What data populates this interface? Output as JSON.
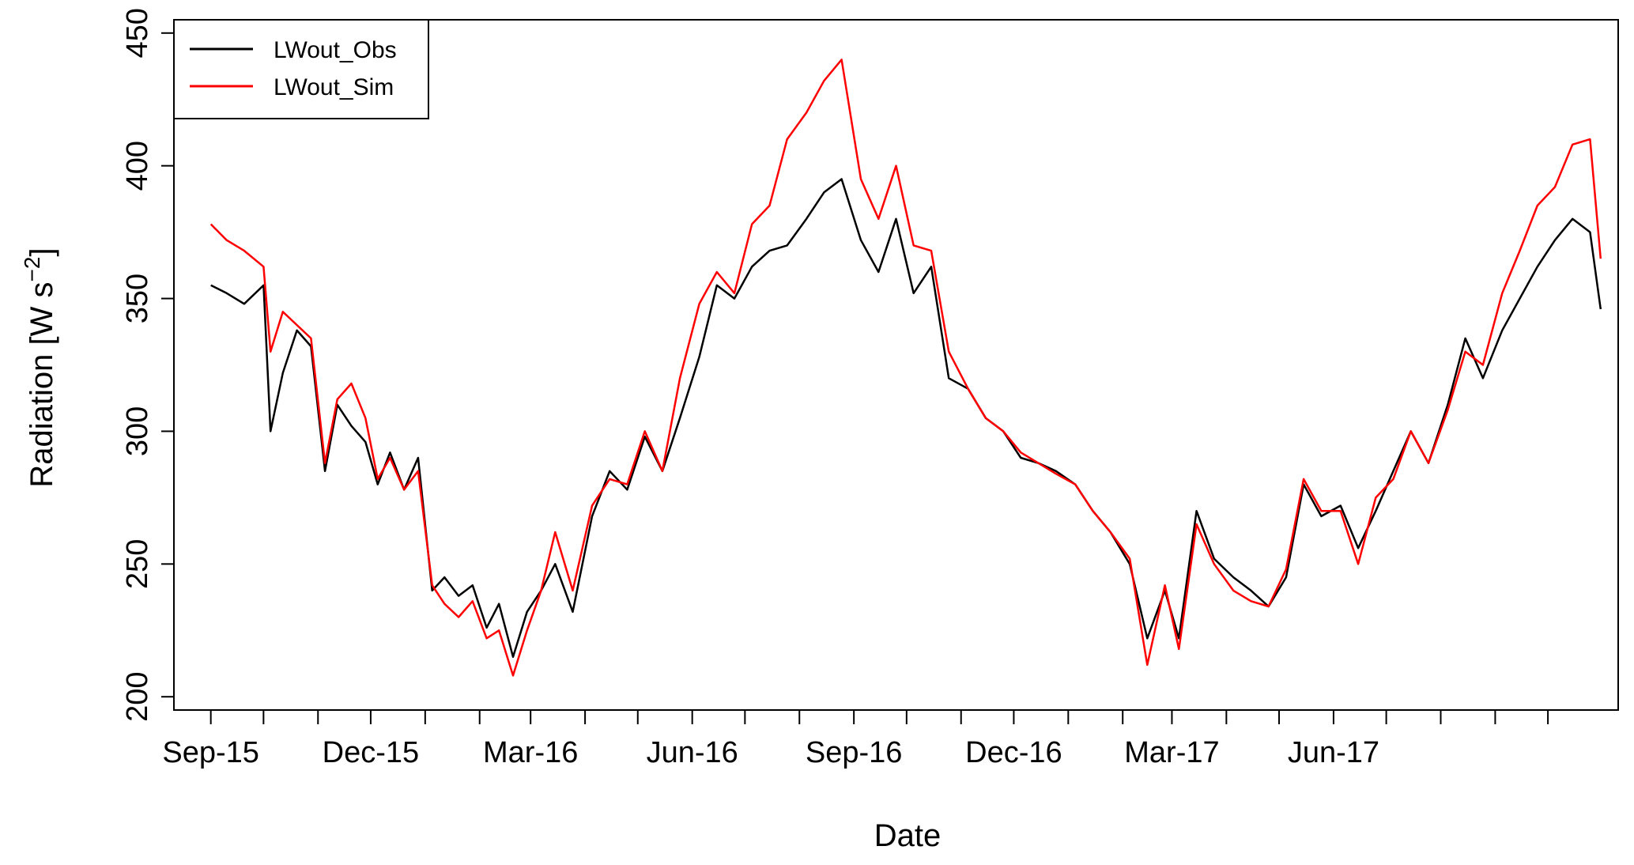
{
  "chart_data": {
    "type": "line",
    "title": "",
    "xlabel": "Date",
    "ylabel": "Radiation [W s",
    "ylabel_sup": "−2",
    "ylabel_close": "]",
    "ylim": [
      195,
      455
    ],
    "yticks": [
      200,
      250,
      300,
      350,
      400,
      450
    ],
    "xlim": [
      "2015-08-11",
      "2017-11-10"
    ],
    "x_start": "2015-09-01",
    "x_end": "2017-10-31",
    "xtick_months": [
      "2015-09",
      "2015-10",
      "2015-11",
      "2015-12",
      "2016-01",
      "2016-02",
      "2016-03",
      "2016-04",
      "2016-05",
      "2016-06",
      "2016-07",
      "2016-08",
      "2016-09",
      "2016-10",
      "2016-11",
      "2016-12",
      "2017-01",
      "2017-02",
      "2017-03",
      "2017-04",
      "2017-05",
      "2017-06",
      "2017-07",
      "2017-08",
      "2017-09",
      "2017-10"
    ],
    "xtick_labels": [
      {
        "date": "2015-09-01",
        "label": "Sep-15"
      },
      {
        "date": "2015-12-01",
        "label": "Dec-15"
      },
      {
        "date": "2016-03-01",
        "label": "Mar-16"
      },
      {
        "date": "2016-06-01",
        "label": "Jun-16"
      },
      {
        "date": "2016-09-01",
        "label": "Sep-16"
      },
      {
        "date": "2016-12-01",
        "label": "Dec-16"
      },
      {
        "date": "2017-03-01",
        "label": "Mar-17"
      },
      {
        "date": "2017-06-01",
        "label": "Jun-17"
      }
    ],
    "legend_position": "top-left",
    "series": [
      {
        "name": "LWout_Obs",
        "color": "#000000",
        "dates": [
          "2015-09-01",
          "2015-09-10",
          "2015-09-20",
          "2015-10-01",
          "2015-10-05",
          "2015-10-12",
          "2015-10-20",
          "2015-10-28",
          "2015-11-05",
          "2015-11-12",
          "2015-11-20",
          "2015-11-28",
          "2015-12-05",
          "2015-12-12",
          "2015-12-20",
          "2015-12-28",
          "2016-01-05",
          "2016-01-12",
          "2016-01-20",
          "2016-01-28",
          "2016-02-05",
          "2016-02-12",
          "2016-02-20",
          "2016-02-28",
          "2016-03-07",
          "2016-03-15",
          "2016-03-25",
          "2016-04-05",
          "2016-04-15",
          "2016-04-25",
          "2016-05-05",
          "2016-05-15",
          "2016-05-25",
          "2016-06-05",
          "2016-06-15",
          "2016-06-25",
          "2016-07-05",
          "2016-07-15",
          "2016-07-25",
          "2016-08-05",
          "2016-08-15",
          "2016-08-25",
          "2016-09-05",
          "2016-09-15",
          "2016-09-25",
          "2016-10-05",
          "2016-10-15",
          "2016-10-25",
          "2016-11-05",
          "2016-11-15",
          "2016-11-25",
          "2016-12-05",
          "2016-12-15",
          "2016-12-25",
          "2017-01-05",
          "2017-01-15",
          "2017-01-25",
          "2017-02-05",
          "2017-02-15",
          "2017-02-25",
          "2017-03-05",
          "2017-03-15",
          "2017-03-25",
          "2017-04-05",
          "2017-04-15",
          "2017-04-25",
          "2017-05-05",
          "2017-05-15",
          "2017-05-25",
          "2017-06-05",
          "2017-06-15",
          "2017-06-25",
          "2017-07-05",
          "2017-07-15",
          "2017-07-25",
          "2017-08-05",
          "2017-08-15",
          "2017-08-25",
          "2017-09-05",
          "2017-09-15",
          "2017-09-25",
          "2017-10-05",
          "2017-10-15",
          "2017-10-25",
          "2017-10-31"
        ],
        "values": [
          355,
          352,
          348,
          355,
          300,
          322,
          338,
          332,
          285,
          310,
          302,
          296,
          280,
          292,
          278,
          290,
          240,
          245,
          238,
          242,
          226,
          235,
          215,
          232,
          240,
          250,
          232,
          268,
          285,
          278,
          298,
          285,
          305,
          328,
          355,
          350,
          362,
          368,
          370,
          380,
          390,
          395,
          372,
          360,
          380,
          352,
          362,
          320,
          316,
          305,
          300,
          290,
          288,
          285,
          280,
          270,
          262,
          250,
          222,
          240,
          222,
          270,
          252,
          245,
          240,
          234,
          245,
          280,
          268,
          272,
          256,
          270,
          285,
          300,
          288,
          310,
          335,
          320,
          338,
          350,
          362,
          372,
          380,
          375,
          346
        ]
      },
      {
        "name": "LWout_Sim",
        "color": "#ff0000",
        "dates": [
          "2015-09-01",
          "2015-09-10",
          "2015-09-20",
          "2015-10-01",
          "2015-10-05",
          "2015-10-12",
          "2015-10-20",
          "2015-10-28",
          "2015-11-05",
          "2015-11-12",
          "2015-11-20",
          "2015-11-28",
          "2015-12-05",
          "2015-12-12",
          "2015-12-20",
          "2015-12-28",
          "2016-01-05",
          "2016-01-12",
          "2016-01-20",
          "2016-01-28",
          "2016-02-05",
          "2016-02-12",
          "2016-02-20",
          "2016-02-28",
          "2016-03-07",
          "2016-03-15",
          "2016-03-25",
          "2016-04-05",
          "2016-04-15",
          "2016-04-25",
          "2016-05-05",
          "2016-05-15",
          "2016-05-25",
          "2016-06-05",
          "2016-06-15",
          "2016-06-25",
          "2016-07-05",
          "2016-07-15",
          "2016-07-25",
          "2016-08-05",
          "2016-08-15",
          "2016-08-25",
          "2016-09-05",
          "2016-09-15",
          "2016-09-25",
          "2016-10-05",
          "2016-10-15",
          "2016-10-25",
          "2016-11-05",
          "2016-11-15",
          "2016-11-25",
          "2016-12-05",
          "2016-12-15",
          "2016-12-25",
          "2017-01-05",
          "2017-01-15",
          "2017-01-25",
          "2017-02-05",
          "2017-02-15",
          "2017-02-25",
          "2017-03-05",
          "2017-03-15",
          "2017-03-25",
          "2017-04-05",
          "2017-04-15",
          "2017-04-25",
          "2017-05-05",
          "2017-05-15",
          "2017-05-25",
          "2017-06-05",
          "2017-06-15",
          "2017-06-25",
          "2017-07-05",
          "2017-07-15",
          "2017-07-25",
          "2017-08-05",
          "2017-08-15",
          "2017-08-25",
          "2017-09-05",
          "2017-09-15",
          "2017-09-25",
          "2017-10-05",
          "2017-10-15",
          "2017-10-25",
          "2017-10-31"
        ],
        "values": [
          378,
          372,
          368,
          362,
          330,
          345,
          340,
          335,
          288,
          312,
          318,
          305,
          282,
          290,
          278,
          285,
          242,
          235,
          230,
          236,
          222,
          225,
          208,
          225,
          240,
          262,
          240,
          272,
          282,
          280,
          300,
          285,
          320,
          348,
          360,
          352,
          378,
          385,
          410,
          420,
          432,
          440,
          395,
          380,
          400,
          370,
          368,
          330,
          316,
          305,
          300,
          292,
          288,
          284,
          280,
          270,
          262,
          252,
          212,
          242,
          218,
          265,
          250,
          240,
          236,
          234,
          248,
          282,
          270,
          270,
          250,
          275,
          282,
          300,
          288,
          308,
          330,
          325,
          352,
          368,
          385,
          392,
          408,
          410,
          365
        ]
      }
    ]
  }
}
